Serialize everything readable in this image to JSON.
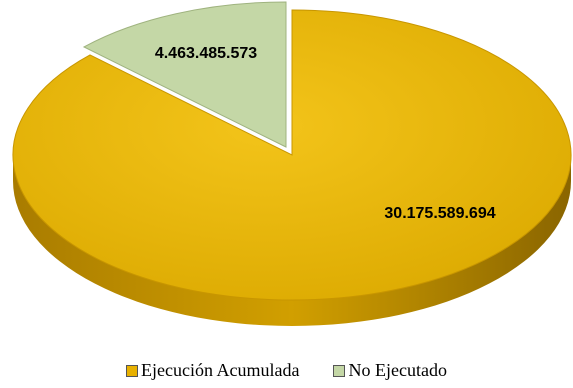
{
  "chart_data": {
    "type": "pie",
    "style": "3d",
    "title": "",
    "slices": [
      {
        "label": "Ejecución Acumulada",
        "value": 30175589694,
        "display": "30.175.589.694",
        "color": "#E8B100"
      },
      {
        "label": "No Ejecutado",
        "value": 4463485573,
        "display": "4.463.485.573",
        "color": "#C4D7A6"
      }
    ],
    "legend_position": "bottom"
  }
}
